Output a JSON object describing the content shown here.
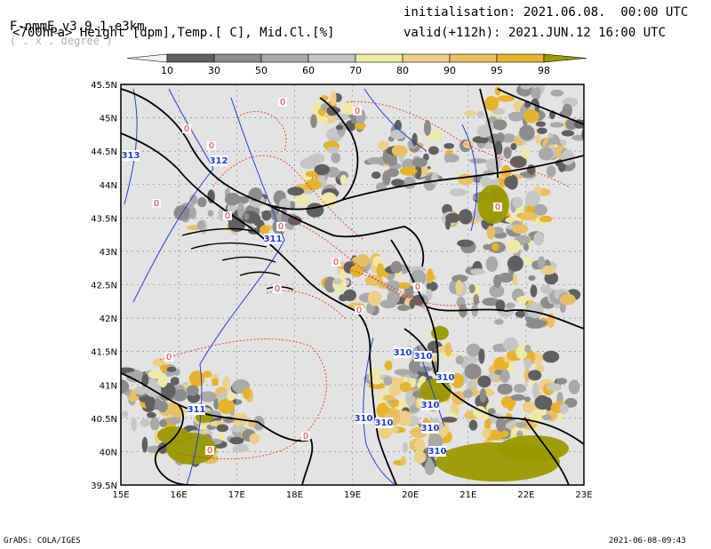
{
  "header": {
    "model": "F-nmmE_v3.9.1-e3km",
    "units": "( . x . degree )",
    "fields": "<700hPa> Height [dpm],Temp.[ C], Mid.Cl.[%]",
    "init": "initialisation: 2021.06.08.  00:00 UTC",
    "valid": "valid(+112h): 2021.JUN.12 16:00 UTC"
  },
  "colorbar": {
    "labels": [
      "10",
      "30",
      "50",
      "60",
      "70",
      "80",
      "90",
      "95",
      "98"
    ],
    "colors": [
      "#f4f4f4",
      "#606060",
      "#8c8c8c",
      "#a9a9a9",
      "#c6c6c6",
      "#efe9a8",
      "#ecd089",
      "#e7c066",
      "#e6b32c",
      "#9a9a00"
    ]
  },
  "map": {
    "lat_labels": [
      "45.5N",
      "45N",
      "44.5N",
      "44N",
      "43.5N",
      "43N",
      "42.5N",
      "42N",
      "41.5N",
      "41N",
      "40.5N",
      "40N",
      "39.5N"
    ],
    "lon_labels": [
      "15E",
      "16E",
      "17E",
      "18E",
      "19E",
      "20E",
      "21E",
      "22E",
      "23E"
    ],
    "height_labels": [
      "313",
      "312",
      "311",
      "311",
      "310",
      "310",
      "310",
      "310",
      "310",
      "310",
      "310",
      "310"
    ],
    "temp_labels": [
      "0",
      "0",
      "0",
      "0",
      "0",
      "0",
      "0",
      "0",
      "0",
      "0",
      "0",
      "0",
      "0",
      "0",
      "0"
    ],
    "colors": {
      "land": "#e3e3e3",
      "height_contour": "#1f3fd8",
      "temp_contour": "#e83030",
      "border": "#000000"
    }
  },
  "footer": {
    "left": "GrADS: COLA/IGES",
    "right": "2021-06-08-09:43"
  }
}
